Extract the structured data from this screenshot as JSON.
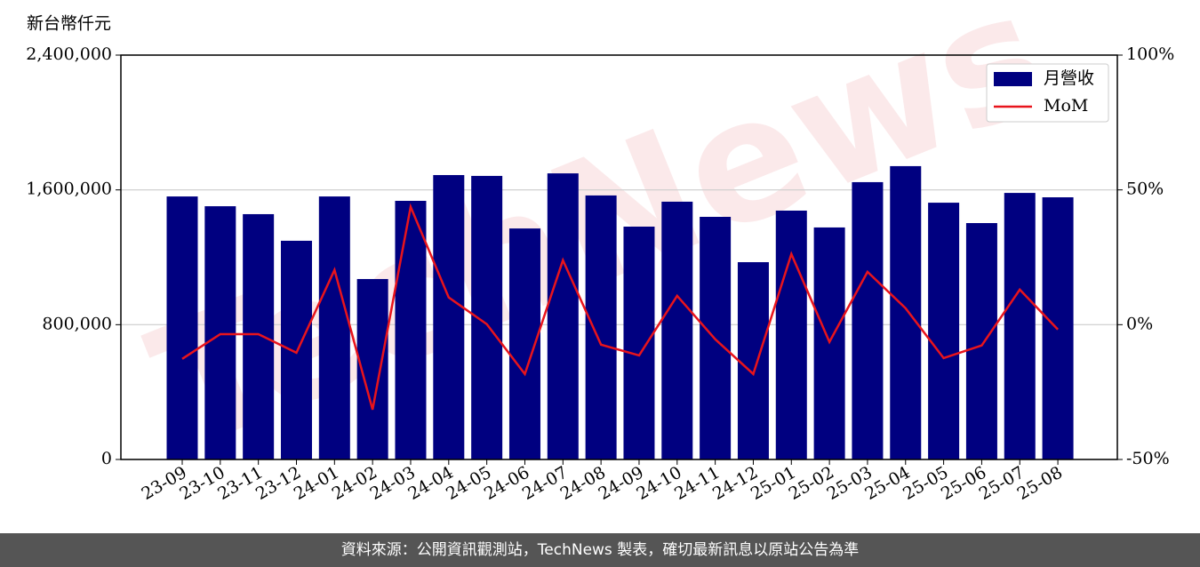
{
  "chart_data": {
    "type": "bar",
    "y_label": "新台幣仟元",
    "watermark": "TechNews",
    "categories": [
      "23-09",
      "23-10",
      "23-11",
      "23-12",
      "24-01",
      "24-02",
      "24-03",
      "24-04",
      "24-05",
      "24-06",
      "24-07",
      "24-08",
      "24-09",
      "24-10",
      "24-11",
      "24-12",
      "25-01",
      "25-02",
      "25-03",
      "25-04",
      "25-05",
      "25-06",
      "25-07",
      "25-08"
    ],
    "series": [
      {
        "name": "月營收",
        "type": "bar",
        "color": "#000080",
        "values": [
          1561000,
          1503000,
          1456000,
          1298000,
          1561000,
          1071000,
          1535000,
          1688000,
          1683000,
          1371000,
          1698000,
          1567000,
          1382000,
          1530000,
          1440000,
          1171000,
          1477000,
          1377000,
          1646000,
          1741000,
          1524000,
          1403000,
          1582000,
          1556000
        ]
      },
      {
        "name": "MoM",
        "type": "line",
        "axis": "y2",
        "color": "#e8141c",
        "values": [
          -12.7,
          -3.5,
          -3.5,
          -10.4,
          20.3,
          -31.5,
          43.7,
          10.1,
          0.2,
          -18.3,
          23.9,
          -7.4,
          -11.4,
          10.7,
          -5.4,
          -18.3,
          26.2,
          -6.4,
          19.6,
          6.1,
          -12.4,
          -7.7,
          13.0,
          -1.8
        ]
      }
    ],
    "ylim": [
      0,
      2400000
    ],
    "yticks": [
      0,
      {
        "value": 800000,
        "label": "800,000"
      },
      {
        "value": 1600000,
        "label": "1,600,000"
      },
      {
        "value": 2400000,
        "label": "2,400,000"
      }
    ],
    "y2lim": [
      -50,
      100
    ],
    "y2ticks": [
      {
        "value": -50,
        "label": "-50%"
      },
      {
        "value": 0,
        "label": "0%"
      },
      {
        "value": 50,
        "label": "50%"
      },
      {
        "value": 100,
        "label": "100%"
      }
    ],
    "grid": true,
    "legend": "upper right"
  },
  "footer": {
    "text": "資料來源：公開資訊觀測站，TechNews 製表，確切最新訊息以原站公告為準"
  }
}
